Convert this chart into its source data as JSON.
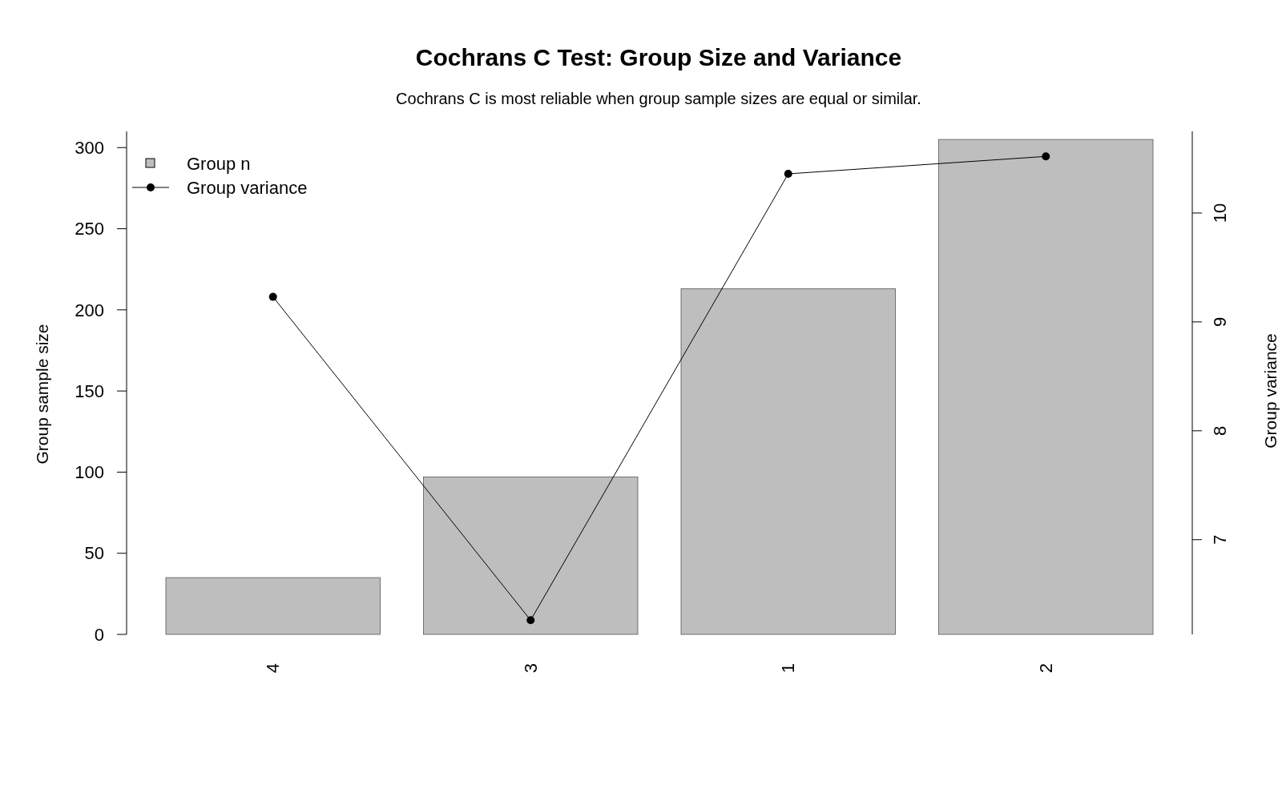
{
  "chart_data": {
    "type": "bar",
    "title": "Cochrans C Test: Group Size and Variance",
    "subtitle": "Cochrans C is most reliable when group sample sizes are equal or similar.",
    "categories": [
      "4",
      "3",
      "1",
      "2"
    ],
    "series": [
      {
        "name": "Group n",
        "color": "#bebebe",
        "values": [
          35,
          97,
          213,
          305
        ]
      },
      {
        "name": "Group variance",
        "type": "line",
        "color": "#000000",
        "axis": "y2",
        "marker": "circle",
        "values": [
          9.23,
          6.26,
          10.36,
          10.52
        ]
      }
    ],
    "ylabel": "Group sample size",
    "y2label": "Group variance",
    "ylim": [
      0,
      310
    ],
    "yticks": [
      0,
      50,
      100,
      150,
      200,
      250,
      300
    ],
    "y2lim": [
      6.13,
      10.75
    ],
    "y2ticks": [
      7,
      8,
      9,
      10
    ],
    "legend": "top left"
  }
}
